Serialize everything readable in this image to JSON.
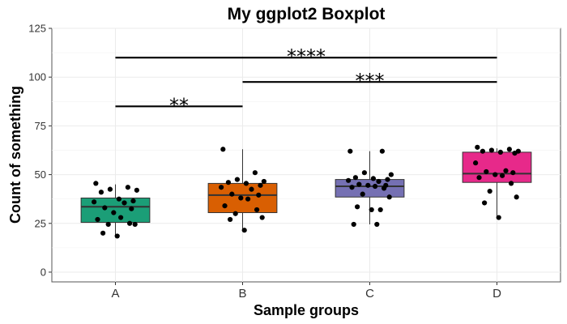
{
  "chart_data": {
    "type": "boxplot",
    "title": "My ggplot2 Boxplot",
    "xlabel": "Sample groups",
    "ylabel": "Count of something",
    "ylim": [
      -5,
      125
    ],
    "yticks": [
      0,
      25,
      50,
      75,
      100,
      125
    ],
    "grid": true,
    "categories": [
      "A",
      "B",
      "C",
      "D"
    ],
    "colors": {
      "A": "#1b9e77",
      "B": "#d95f02",
      "C": "#7570b3",
      "D": "#e7298a"
    },
    "boxes": [
      {
        "group": "A",
        "whisker_low": 18.5,
        "q1": 25.5,
        "median": 33.5,
        "q3": 38.0,
        "whisker_high": 45.0
      },
      {
        "group": "B",
        "whisker_low": 21.5,
        "q1": 30.5,
        "median": 39.5,
        "q3": 45.5,
        "whisker_high": 63.0
      },
      {
        "group": "C",
        "whisker_low": 24.5,
        "q1": 38.5,
        "median": 44.0,
        "q3": 47.5,
        "whisker_high": 62.0
      },
      {
        "group": "D",
        "whisker_low": 27.5,
        "q1": 46.0,
        "median": 50.5,
        "q3": 61.5,
        "whisker_high": 63.5
      }
    ],
    "points": [
      {
        "group": "A",
        "values": [
          45.5,
          43.5,
          42.5,
          42.0,
          41.0,
          37.5,
          36.5,
          36.0,
          35.5,
          33.0,
          32.5,
          30.5,
          28.0,
          27.0,
          25.0,
          24.5,
          24.5,
          20.0,
          18.5
        ]
      },
      {
        "group": "B",
        "values": [
          63.0,
          51.0,
          47.5,
          46.5,
          46.0,
          45.5,
          44.5,
          43.5,
          42.5,
          40.0,
          39.5,
          38.0,
          37.5,
          34.0,
          32.0,
          30.0,
          28.0,
          27.0,
          21.5
        ]
      },
      {
        "group": "C",
        "values": [
          62.0,
          62.0,
          51.0,
          50.0,
          48.5,
          48.0,
          47.5,
          47.0,
          46.5,
          45.0,
          44.5,
          44.5,
          44.0,
          43.5,
          43.0,
          40.0,
          38.5,
          33.5,
          32.0,
          32.0,
          24.5,
          24.5
        ]
      },
      {
        "group": "D",
        "values": [
          64.0,
          63.0,
          62.5,
          62.0,
          62.0,
          61.5,
          61.0,
          56.0,
          52.0,
          51.5,
          51.0,
          50.0,
          49.5,
          48.5,
          45.5,
          41.5,
          38.5,
          35.5,
          28.0
        ]
      }
    ],
    "comparisons": [
      {
        "from": "A",
        "to": "B",
        "y": 85,
        "label": "**"
      },
      {
        "from": "B",
        "to": "D",
        "y": 97.5,
        "label": "***"
      },
      {
        "from": "A",
        "to": "D",
        "y": 110,
        "label": "****"
      }
    ]
  }
}
